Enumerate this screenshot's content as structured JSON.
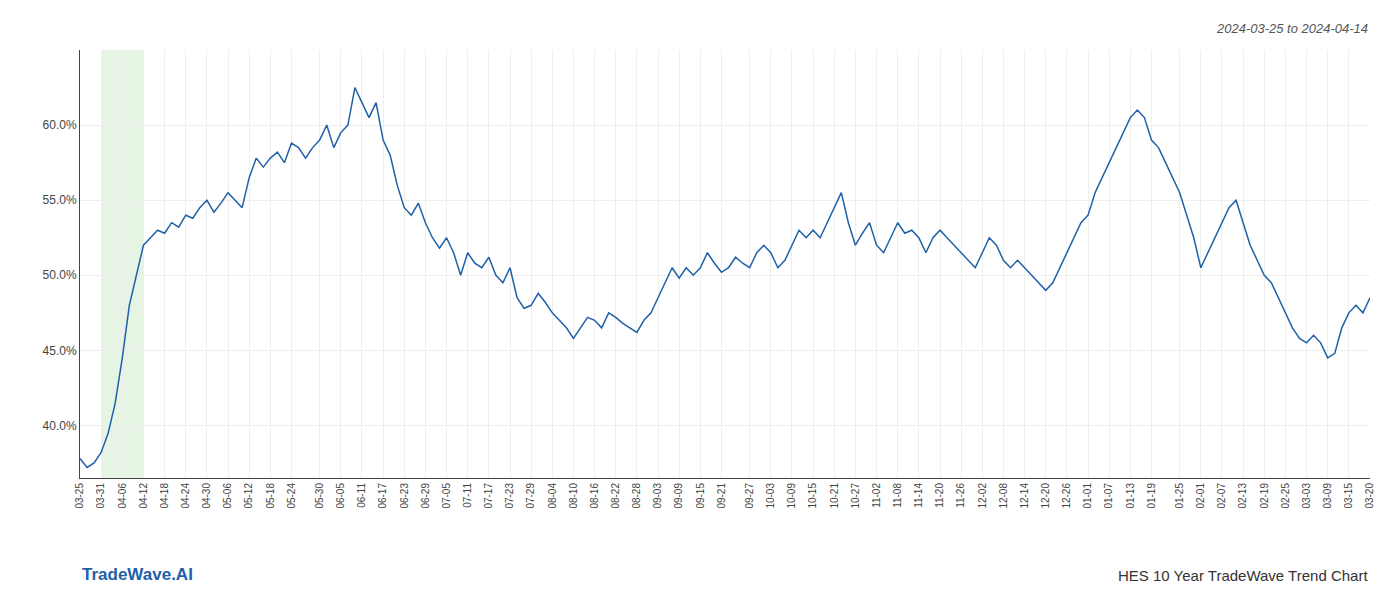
{
  "chart_data": {
    "type": "line",
    "annotations": [
      "2024-03-25 to 2024-04-14",
      "TradeWave.AI",
      "HES 10 Year TradeWave Trend Chart"
    ],
    "color": "#2060a8",
    "grid": true,
    "highlight": {
      "start": 3,
      "end": 9,
      "color": "#d6ecd2"
    },
    "ylim": [
      36.5,
      65.0
    ],
    "yticks": [
      {
        "value": 40.0,
        "label": "40.0%"
      },
      {
        "value": 45.0,
        "label": "45.0%"
      },
      {
        "value": 50.0,
        "label": "50.0%"
      },
      {
        "value": 55.0,
        "label": "55.0%"
      },
      {
        "value": 60.0,
        "label": "60.0%"
      }
    ],
    "categories": [
      "03-25",
      null,
      null,
      "03-31",
      null,
      null,
      "04-06",
      null,
      null,
      "04-12",
      null,
      null,
      "04-18",
      null,
      null,
      "04-24",
      null,
      null,
      "04-30",
      null,
      null,
      "05-06",
      null,
      null,
      "05-12",
      null,
      null,
      "05-18",
      null,
      null,
      "05-24",
      null,
      null,
      null,
      "05-30",
      null,
      null,
      "06-05",
      null,
      null,
      "06-11",
      null,
      null,
      "06-17",
      null,
      null,
      "06-23",
      null,
      null,
      "06-29",
      null,
      null,
      "07-05",
      null,
      null,
      "07-11",
      null,
      null,
      "07-17",
      null,
      null,
      "07-23",
      null,
      null,
      "07-29",
      null,
      null,
      "08-04",
      null,
      null,
      "08-10",
      null,
      null,
      "08-16",
      null,
      null,
      "08-22",
      null,
      null,
      "08-28",
      null,
      null,
      "09-03",
      null,
      null,
      "09-09",
      null,
      null,
      "09-15",
      null,
      null,
      "09-21",
      null,
      null,
      null,
      "09-27",
      null,
      null,
      "10-03",
      null,
      null,
      "10-09",
      null,
      null,
      "10-15",
      null,
      null,
      "10-21",
      null,
      null,
      "10-27",
      null,
      null,
      "11-02",
      null,
      null,
      "11-08",
      null,
      null,
      "11-14",
      null,
      null,
      "11-20",
      null,
      null,
      "11-26",
      null,
      null,
      "12-02",
      null,
      null,
      "12-08",
      null,
      null,
      "12-14",
      null,
      null,
      "12-20",
      null,
      null,
      "12-26",
      null,
      null,
      "01-01",
      null,
      null,
      "01-07",
      null,
      null,
      "01-13",
      null,
      null,
      "01-19",
      null,
      null,
      null,
      "01-25",
      null,
      null,
      "02-01",
      null,
      null,
      "02-07",
      null,
      null,
      "02-13",
      null,
      null,
      "02-19",
      null,
      null,
      "02-25",
      null,
      null,
      "03-03",
      null,
      null,
      "03-09",
      null,
      null,
      "03-15",
      null,
      null,
      "03-20"
    ],
    "values": [
      37.8,
      37.2,
      37.5,
      38.2,
      39.5,
      41.5,
      44.5,
      48.0,
      50.0,
      52.0,
      52.5,
      53.0,
      52.8,
      53.5,
      53.2,
      54.0,
      53.8,
      54.5,
      55.0,
      54.2,
      54.8,
      55.5,
      55.0,
      54.5,
      56.5,
      57.8,
      57.2,
      57.8,
      58.2,
      57.5,
      58.8,
      58.5,
      57.8,
      58.5,
      59.0,
      60.0,
      58.5,
      59.5,
      60.0,
      62.5,
      61.5,
      60.5,
      61.5,
      59.0,
      58.0,
      56.0,
      54.5,
      54.0,
      54.8,
      53.5,
      52.5,
      51.8,
      52.5,
      51.5,
      50.0,
      51.5,
      50.8,
      50.5,
      51.2,
      50.0,
      49.5,
      50.5,
      48.5,
      47.8,
      48.0,
      48.8,
      48.2,
      47.5,
      47.0,
      46.5,
      45.8,
      46.5,
      47.2,
      47.0,
      46.5,
      47.5,
      47.2,
      46.8,
      46.5,
      46.2,
      47.0,
      47.5,
      48.5,
      49.5,
      50.5,
      49.8,
      50.5,
      50.0,
      50.5,
      51.5,
      50.8,
      50.2,
      50.5,
      51.2,
      50.8,
      50.5,
      51.5,
      52.0,
      51.5,
      50.5,
      51.0,
      52.0,
      53.0,
      52.5,
      53.0,
      52.5,
      53.5,
      54.5,
      55.5,
      53.5,
      52.0,
      52.8,
      53.5,
      52.0,
      51.5,
      52.5,
      53.5,
      52.8,
      53.0,
      52.5,
      51.5,
      52.5,
      53.0,
      52.5,
      52.0,
      51.5,
      51.0,
      50.5,
      51.5,
      52.5,
      52.0,
      51.0,
      50.5,
      51.0,
      50.5,
      50.0,
      49.5,
      49.0,
      49.5,
      50.5,
      51.5,
      52.5,
      53.5,
      54.0,
      55.5,
      56.5,
      57.5,
      58.5,
      59.5,
      60.5,
      61.0,
      60.5,
      59.0,
      58.5,
      57.5,
      56.5,
      55.5,
      54.0,
      52.5,
      50.5,
      51.5,
      52.5,
      53.5,
      54.5,
      55.0,
      53.5,
      52.0,
      51.0,
      50.0,
      49.5,
      48.5,
      47.5,
      46.5,
      45.8,
      45.5,
      46.0,
      45.5,
      44.5,
      44.8,
      46.5,
      47.5,
      48.0,
      47.5,
      48.5
    ]
  }
}
